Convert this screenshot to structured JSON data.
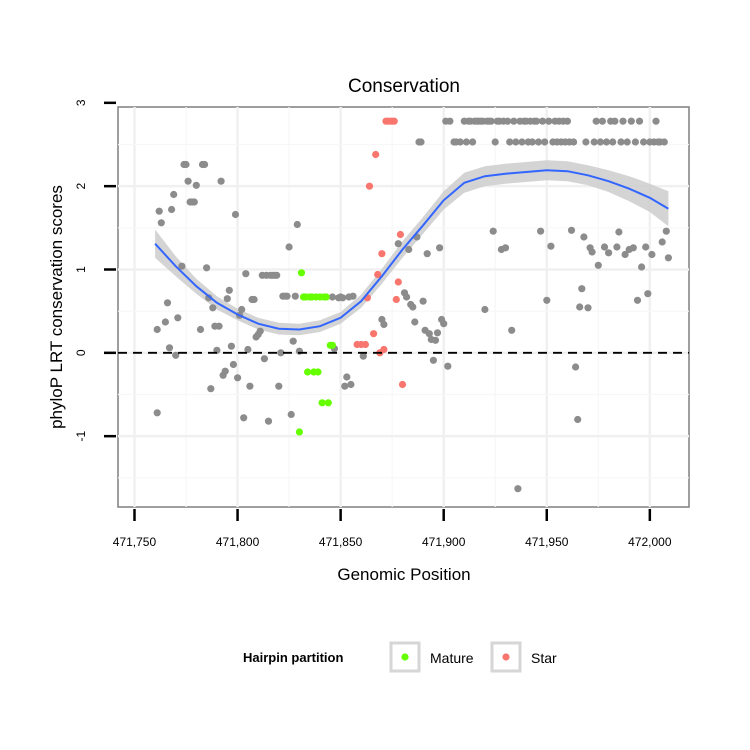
{
  "chart_data": {
    "type": "scatter",
    "title": "Conservation",
    "xlabel": "Genomic Position",
    "ylabel": "phyloP LRT conservation scores",
    "xlim": [
      471742,
      472019
    ],
    "ylim": [
      -1.85,
      2.95
    ],
    "x_ticks": [
      471750,
      471800,
      471850,
      471900,
      471950,
      472000
    ],
    "x_tick_labels": [
      "471,750",
      "471,800",
      "471,850",
      "471,900",
      "471,950",
      "472,000"
    ],
    "y_ticks": [
      -1,
      0,
      1,
      2,
      3
    ],
    "y_tick_labels": [
      "-1",
      "0",
      "1",
      "2",
      "3"
    ],
    "grid": true,
    "reference_line": {
      "y": 0,
      "style": "dashed",
      "color": "#000000"
    },
    "legend": {
      "title": "Hairpin partition",
      "placement": "bottom",
      "entries": [
        {
          "label": "Mature",
          "color": "#66ff00"
        },
        {
          "label": "Star",
          "color": "#f8766d"
        }
      ]
    },
    "colors": {
      "other": "#8c8c8c",
      "mature": "#66ff00",
      "star": "#f8766d",
      "smooth": "#3366ff",
      "ribbon": "#cccccc"
    },
    "series": [
      {
        "name": "Other",
        "points": [
          [
            471761,
            -0.72
          ],
          [
            471761,
            0.28
          ],
          [
            471762,
            1.7
          ],
          [
            471763,
            1.56
          ],
          [
            471765,
            0.37
          ],
          [
            471766,
            0.6
          ],
          [
            471767,
            0.06
          ],
          [
            471768,
            1.72
          ],
          [
            471769,
            1.9
          ],
          [
            471770,
            -0.03
          ],
          [
            471771,
            0.42
          ],
          [
            471773,
            1.04
          ],
          [
            471774,
            2.26
          ],
          [
            471775,
            2.26
          ],
          [
            471776,
            2.06
          ],
          [
            471777,
            1.81
          ],
          [
            471778,
            1.81
          ],
          [
            471779,
            1.81
          ],
          [
            471780,
            2.01
          ],
          [
            471782,
            0.28
          ],
          [
            471783,
            2.26
          ],
          [
            471784,
            2.26
          ],
          [
            471785,
            1.02
          ],
          [
            471786,
            0.66
          ],
          [
            471787,
            -0.43
          ],
          [
            471788,
            0.54
          ],
          [
            471789,
            0.32
          ],
          [
            471790,
            0.03
          ],
          [
            471791,
            0.32
          ],
          [
            471792,
            2.06
          ],
          [
            471793,
            -0.27
          ],
          [
            471794,
            -0.22
          ],
          [
            471795,
            0.65
          ],
          [
            471796,
            0.75
          ],
          [
            471797,
            0.08
          ],
          [
            471798,
            -0.14
          ],
          [
            471799,
            1.66
          ],
          [
            471800,
            -0.3
          ],
          [
            471801,
            0.45
          ],
          [
            471802,
            0.52
          ],
          [
            471803,
            -0.78
          ],
          [
            471804,
            0.95
          ],
          [
            471805,
            0.04
          ],
          [
            471806,
            -0.4
          ],
          [
            471807,
            0.64
          ],
          [
            471808,
            0.64
          ],
          [
            471809,
            0.19
          ],
          [
            471810,
            0.22
          ],
          [
            471811,
            0.26
          ],
          [
            471812,
            0.93
          ],
          [
            471813,
            -0.07
          ],
          [
            471814,
            0.93
          ],
          [
            471815,
            -0.82
          ],
          [
            471816,
            0.93
          ],
          [
            471817,
            0.93
          ],
          [
            471818,
            0.93
          ],
          [
            471819,
            0.93
          ],
          [
            471820,
            -0.4
          ],
          [
            471821,
            0.0
          ],
          [
            471822,
            0.68
          ],
          [
            471823,
            0.68
          ],
          [
            471824,
            0.68
          ],
          [
            471825,
            1.27
          ],
          [
            471826,
            -0.74
          ],
          [
            471827,
            0.14
          ],
          [
            471828,
            0.68
          ],
          [
            471829,
            1.54
          ],
          [
            471830,
            0.02
          ],
          [
            471846,
            0.67
          ],
          [
            471847,
            0.05
          ],
          [
            471849,
            0.66
          ],
          [
            471850,
            0.67
          ],
          [
            471851,
            0.66
          ],
          [
            471852,
            -0.4
          ],
          [
            471853,
            -0.29
          ],
          [
            471854,
            0.67
          ],
          [
            471855,
            -0.38
          ],
          [
            471856,
            0.68
          ],
          [
            471861,
            -0.04
          ],
          [
            471870,
            0.4
          ],
          [
            471871,
            0.34
          ],
          [
            471878,
            1.31
          ],
          [
            471881,
            0.72
          ],
          [
            471882,
            0.67
          ],
          [
            471883,
            1.24
          ],
          [
            471884,
            0.58
          ],
          [
            471885,
            0.55
          ],
          [
            471886,
            0.37
          ],
          [
            471887,
            1.39
          ],
          [
            471888,
            2.53
          ],
          [
            471889,
            2.53
          ],
          [
            471890,
            0.62
          ],
          [
            471891,
            0.27
          ],
          [
            471892,
            1.19
          ],
          [
            471893,
            0.23
          ],
          [
            471894,
            0.16
          ],
          [
            471895,
            -0.09
          ],
          [
            471896,
            0.15
          ],
          [
            471897,
            0.24
          ],
          [
            471898,
            1.26
          ],
          [
            471899,
            0.4
          ],
          [
            471900,
            0.35
          ],
          [
            471901,
            2.78
          ],
          [
            471902,
            -0.16
          ],
          [
            471903,
            2.78
          ],
          [
            471905,
            2.53
          ],
          [
            471906,
            2.53
          ],
          [
            471908,
            2.53
          ],
          [
            471910,
            2.78
          ],
          [
            471911,
            2.53
          ],
          [
            471912,
            2.78
          ],
          [
            471913,
            2.78
          ],
          [
            471914,
            2.53
          ],
          [
            471915,
            2.78
          ],
          [
            471916,
            2.78
          ],
          [
            471917,
            2.78
          ],
          [
            471918,
            2.78
          ],
          [
            471919,
            2.78
          ],
          [
            471920,
            0.52
          ],
          [
            471921,
            2.78
          ],
          [
            471922,
            2.78
          ],
          [
            471923,
            2.78
          ],
          [
            471924,
            1.46
          ],
          [
            471925,
            2.53
          ],
          [
            471926,
            2.78
          ],
          [
            471927,
            2.78
          ],
          [
            471928,
            1.24
          ],
          [
            471929,
            2.78
          ],
          [
            471930,
            1.26
          ],
          [
            471931,
            2.78
          ],
          [
            471932,
            2.53
          ],
          [
            471933,
            0.27
          ],
          [
            471934,
            2.78
          ],
          [
            471935,
            2.53
          ],
          [
            471936,
            -1.63
          ],
          [
            471937,
            2.78
          ],
          [
            471938,
            2.53
          ],
          [
            471939,
            2.78
          ],
          [
            471940,
            2.78
          ],
          [
            471941,
            2.53
          ],
          [
            471942,
            2.78
          ],
          [
            471943,
            2.53
          ],
          [
            471944,
            2.78
          ],
          [
            471945,
            2.78
          ],
          [
            471946,
            2.53
          ],
          [
            471947,
            1.46
          ],
          [
            471948,
            2.78
          ],
          [
            471949,
            2.53
          ],
          [
            471950,
            0.63
          ],
          [
            471951,
            2.78
          ],
          [
            471952,
            1.28
          ],
          [
            471953,
            2.53
          ],
          [
            471954,
            2.78
          ],
          [
            471955,
            2.53
          ],
          [
            471956,
            2.78
          ],
          [
            471957,
            2.53
          ],
          [
            471958,
            2.78
          ],
          [
            471959,
            2.53
          ],
          [
            471960,
            2.78
          ],
          [
            471961,
            2.53
          ],
          [
            471962,
            1.47
          ],
          [
            471963,
            2.53
          ],
          [
            471964,
            -0.17
          ],
          [
            471965,
            -0.8
          ],
          [
            471966,
            0.55
          ],
          [
            471967,
            0.77
          ],
          [
            471968,
            1.39
          ],
          [
            471969,
            2.53
          ],
          [
            471970,
            0.54
          ],
          [
            471971,
            1.26
          ],
          [
            471972,
            1.21
          ],
          [
            471973,
            2.53
          ],
          [
            471974,
            2.78
          ],
          [
            471975,
            1.05
          ],
          [
            471976,
            2.53
          ],
          [
            471977,
            2.78
          ],
          [
            471978,
            1.27
          ],
          [
            471979,
            2.53
          ],
          [
            471980,
            1.2
          ],
          [
            471981,
            2.78
          ],
          [
            471982,
            2.53
          ],
          [
            471983,
            2.78
          ],
          [
            471984,
            1.27
          ],
          [
            471985,
            1.45
          ],
          [
            471986,
            2.53
          ],
          [
            471987,
            2.78
          ],
          [
            471988,
            1.18
          ],
          [
            471989,
            2.53
          ],
          [
            471990,
            1.24
          ],
          [
            471991,
            2.78
          ],
          [
            471992,
            1.26
          ],
          [
            471993,
            2.53
          ],
          [
            471994,
            0.63
          ],
          [
            471995,
            2.78
          ],
          [
            471996,
            1.03
          ],
          [
            471997,
            2.53
          ],
          [
            471998,
            1.27
          ],
          [
            471999,
            0.71
          ],
          [
            472000,
            2.53
          ],
          [
            472001,
            1.18
          ],
          [
            472002,
            2.53
          ],
          [
            472003,
            2.78
          ],
          [
            472004,
            2.53
          ],
          [
            472005,
            2.53
          ],
          [
            472006,
            1.33
          ],
          [
            472007,
            2.53
          ],
          [
            472008,
            1.46
          ],
          [
            472009,
            1.14
          ]
        ]
      },
      {
        "name": "Mature",
        "points": [
          [
            471830,
            -0.95
          ],
          [
            471831,
            0.96
          ],
          [
            471832,
            0.67
          ],
          [
            471833,
            0.67
          ],
          [
            471834,
            -0.23
          ],
          [
            471835,
            0.67
          ],
          [
            471836,
            0.67
          ],
          [
            471837,
            -0.23
          ],
          [
            471838,
            0.67
          ],
          [
            471839,
            -0.23
          ],
          [
            471840,
            0.67
          ],
          [
            471841,
            -0.6
          ],
          [
            471842,
            0.67
          ],
          [
            471843,
            0.67
          ],
          [
            471844,
            -0.6
          ],
          [
            471845,
            0.09
          ],
          [
            471846,
            0.09
          ]
        ]
      },
      {
        "name": "Star",
        "points": [
          [
            471858,
            0.1
          ],
          [
            471860,
            0.1
          ],
          [
            471862,
            0.1
          ],
          [
            471863,
            0.66
          ],
          [
            471864,
            2.0
          ],
          [
            471866,
            0.23
          ],
          [
            471867,
            2.38
          ],
          [
            471868,
            0.94
          ],
          [
            471869,
            0.0
          ],
          [
            471870,
            1.19
          ],
          [
            471871,
            0.04
          ],
          [
            471872,
            2.78
          ],
          [
            471873,
            2.78
          ],
          [
            471874,
            2.78
          ],
          [
            471875,
            2.78
          ],
          [
            471876,
            2.78
          ],
          [
            471877,
            0.64
          ],
          [
            471878,
            0.85
          ],
          [
            471879,
            1.42
          ],
          [
            471880,
            -0.38
          ]
        ]
      }
    ],
    "smooth": [
      [
        471760,
        1.31
      ],
      [
        471770,
        1.04
      ],
      [
        471780,
        0.8
      ],
      [
        471790,
        0.6
      ],
      [
        471800,
        0.46
      ],
      [
        471810,
        0.35
      ],
      [
        471820,
        0.29
      ],
      [
        471830,
        0.28
      ],
      [
        471840,
        0.32
      ],
      [
        471850,
        0.42
      ],
      [
        471860,
        0.62
      ],
      [
        471870,
        0.92
      ],
      [
        471880,
        1.24
      ],
      [
        471890,
        1.53
      ],
      [
        471900,
        1.83
      ],
      [
        471910,
        2.04
      ],
      [
        471920,
        2.12
      ],
      [
        471930,
        2.15
      ],
      [
        471940,
        2.17
      ],
      [
        471950,
        2.19
      ],
      [
        471960,
        2.18
      ],
      [
        471970,
        2.13
      ],
      [
        471980,
        2.06
      ],
      [
        471990,
        1.97
      ],
      [
        472000,
        1.86
      ],
      [
        472009,
        1.73
      ]
    ],
    "smooth_se": [
      0.17,
      0.12,
      0.09,
      0.08,
      0.07,
      0.07,
      0.07,
      0.07,
      0.07,
      0.07,
      0.08,
      0.09,
      0.1,
      0.1,
      0.11,
      0.12,
      0.12,
      0.12,
      0.12,
      0.12,
      0.12,
      0.12,
      0.13,
      0.15,
      0.17,
      0.21
    ]
  }
}
